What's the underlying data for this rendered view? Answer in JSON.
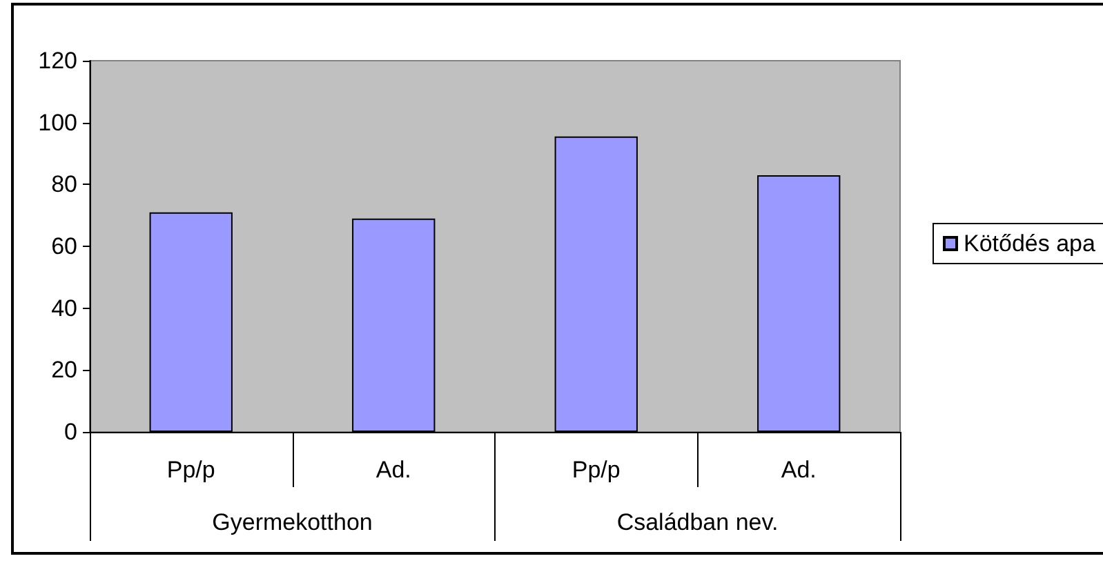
{
  "chart_data": {
    "type": "bar",
    "categories": [
      "Pp/p",
      "Ad.",
      "Pp/p",
      "Ad."
    ],
    "series": [
      {
        "name": "Kötődés apa",
        "color": "#9999ff",
        "values": [
          71,
          69,
          95.5,
          83
        ]
      }
    ],
    "ylim": [
      0,
      120
    ],
    "yticks": [
      0,
      20,
      40,
      60,
      80,
      100,
      120
    ],
    "grid": false,
    "legend": "right",
    "annotations": [
      "Gyermekotthon",
      "Családban nev."
    ]
  }
}
